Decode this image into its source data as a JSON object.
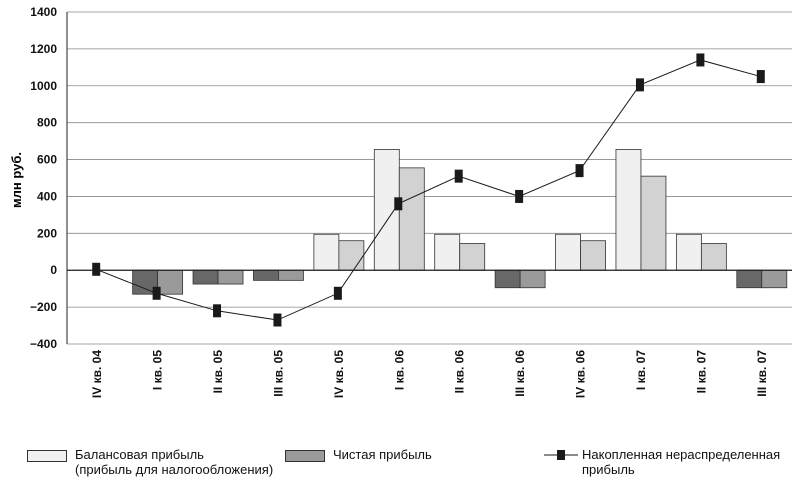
{
  "chart_data": {
    "type": "bar",
    "ylabel": "млн руб.",
    "ylim": [
      -400,
      1400
    ],
    "yticks": [
      -400,
      -200,
      0,
      200,
      400,
      600,
      800,
      1000,
      1200,
      1400
    ],
    "ytick_labels": [
      "−400",
      "−200",
      "0",
      "200",
      "400",
      "600",
      "800",
      "1000",
      "1200",
      "1400"
    ],
    "grid": true,
    "legend_position": "bottom",
    "categories": [
      "IV кв. 04",
      "I кв. 05",
      "II кв. 05",
      "III кв. 05",
      "IV кв. 05",
      "I кв. 06",
      "II кв. 06",
      "III кв. 06",
      "IV кв. 06",
      "I кв. 07",
      "II кв. 07",
      "III кв. 07"
    ],
    "series": [
      {
        "name": "Балансовая прибыль (прибыль для налогообложения)",
        "legend_lines": [
          "Балансовая прибыль",
          "(прибыль для налогообложения)"
        ],
        "type": "bar",
        "positive_color": "#f0f0f0",
        "negative_color": "#686868",
        "values": [
          0,
          -130,
          -75,
          -55,
          195,
          655,
          195,
          -95,
          195,
          655,
          195,
          -95
        ]
      },
      {
        "name": "Чистая прибыль",
        "legend_lines": [
          "Чистая прибыль"
        ],
        "type": "bar",
        "positive_color": "#d2d2d2",
        "negative_color": "#9a9a9a",
        "values": [
          0,
          -130,
          -75,
          -55,
          160,
          555,
          145,
          -95,
          160,
          510,
          145,
          -95
        ]
      },
      {
        "name": "Накопленная нераспределенная прибыль",
        "legend_lines": [
          "Накопленная нераспределенная",
          "прибыль"
        ],
        "type": "line",
        "color": "#1a1a1a",
        "values": [
          5,
          -125,
          -220,
          -270,
          -125,
          360,
          510,
          400,
          540,
          1005,
          1140,
          1050
        ]
      }
    ]
  }
}
